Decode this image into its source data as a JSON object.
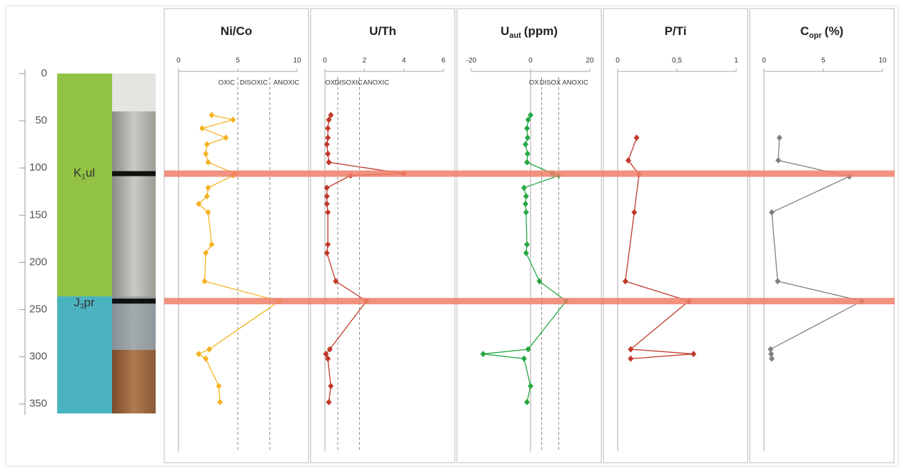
{
  "depth_axis": {
    "ylim": [
      0,
      360
    ],
    "yticks": [
      0,
      50,
      100,
      150,
      200,
      250,
      300,
      350
    ]
  },
  "lithology": [
    {
      "name_main": "K",
      "name_sub": "1",
      "name_suffix": "ul",
      "top": 0,
      "bottom": 236,
      "color": "#92c244"
    },
    {
      "name_main": "J",
      "name_sub": "3",
      "name_suffix": "pr",
      "top": 236,
      "bottom": 360,
      "color": "#4bb3c0"
    }
  ],
  "event_depths": [
    106,
    241
  ],
  "event_color": "#ef7f6a",
  "chart_data": [
    {
      "type": "line",
      "title": "Ni/Co",
      "xlim": [
        0,
        10
      ],
      "xticks": [
        0,
        5,
        10
      ],
      "thresholds": [
        5,
        7.7
      ],
      "zones": [
        "OXIC",
        "DISOXIC",
        "ANOXIC"
      ],
      "color": "#f5b323",
      "depth": [
        44,
        49,
        58,
        68,
        75,
        85,
        94,
        106,
        108,
        121,
        130,
        138,
        147,
        181,
        190,
        220,
        241,
        292,
        297,
        302,
        331,
        348
      ],
      "values": [
        2.8,
        4.6,
        2.0,
        4.0,
        2.4,
        2.3,
        2.5,
        4.8,
        4.6,
        2.5,
        2.4,
        1.7,
        2.5,
        2.8,
        2.3,
        2.2,
        8.5,
        2.6,
        1.7,
        2.3,
        3.4,
        3.5
      ]
    },
    {
      "type": "line",
      "title": "U/Th",
      "xlim": [
        0,
        6
      ],
      "xticks": [
        0,
        2,
        4,
        6
      ],
      "thresholds": [
        0.65,
        1.75
      ],
      "zones": [
        "OX",
        "DISOXIC",
        "ANOXIC"
      ],
      "color": "#c0392b",
      "depth": [
        44,
        49,
        58,
        68,
        75,
        85,
        94,
        106,
        108,
        121,
        130,
        138,
        147,
        181,
        190,
        220,
        241,
        292,
        297,
        302,
        331,
        348
      ],
      "values": [
        0.3,
        0.2,
        0.15,
        0.15,
        0.1,
        0.15,
        0.2,
        4.0,
        1.3,
        0.1,
        0.1,
        0.1,
        0.15,
        0.15,
        0.1,
        0.55,
        2.1,
        0.25,
        0.05,
        0.15,
        0.3,
        0.2
      ]
    },
    {
      "type": "line",
      "title": "U",
      "title_sub": "aut",
      "title_suffix": "(ppm)",
      "xlim": [
        -20,
        20
      ],
      "xticks": [
        -20,
        0,
        20
      ],
      "thresholds": [
        3.75,
        9.5
      ],
      "zones": [
        "OX",
        "DISOX",
        "ANOXIC"
      ],
      "color": "#27a844",
      "depth": [
        44,
        49,
        58,
        68,
        75,
        85,
        94,
        106,
        108,
        121,
        130,
        138,
        147,
        181,
        190,
        220,
        241,
        292,
        297,
        302,
        331,
        348
      ],
      "values": [
        0,
        -0.8,
        -1.2,
        -1,
        -1.7,
        -1,
        -1.2,
        7.5,
        9.5,
        -2.2,
        -1.5,
        -1.7,
        -1.5,
        -1.2,
        -1.5,
        3,
        12,
        -0.8,
        -16,
        -2.2,
        0,
        -1.2
      ]
    },
    {
      "type": "line",
      "title": "P/Ti",
      "xlim": [
        0,
        1
      ],
      "xticks": [
        0,
        {
          "value": 0.5,
          "label": "0,5"
        },
        1
      ],
      "color": "#c0392b",
      "depth": [
        68,
        92,
        107,
        147,
        220,
        241,
        292,
        297,
        302
      ],
      "values": [
        0.16,
        0.09,
        0.18,
        0.14,
        0.065,
        0.6,
        0.11,
        0.64,
        0.11
      ]
    },
    {
      "type": "line",
      "title": "C",
      "title_sub": "opr",
      "title_suffix": "(%)",
      "xlim": [
        0,
        10
      ],
      "xticks": [
        0,
        5,
        10
      ],
      "color": "#808080",
      "depth": [
        68,
        92,
        109,
        147,
        220,
        241,
        292,
        297,
        302
      ],
      "values": [
        1.3,
        1.2,
        7.2,
        0.65,
        1.15,
        8.25,
        0.55,
        0.6,
        0.65
      ]
    }
  ]
}
